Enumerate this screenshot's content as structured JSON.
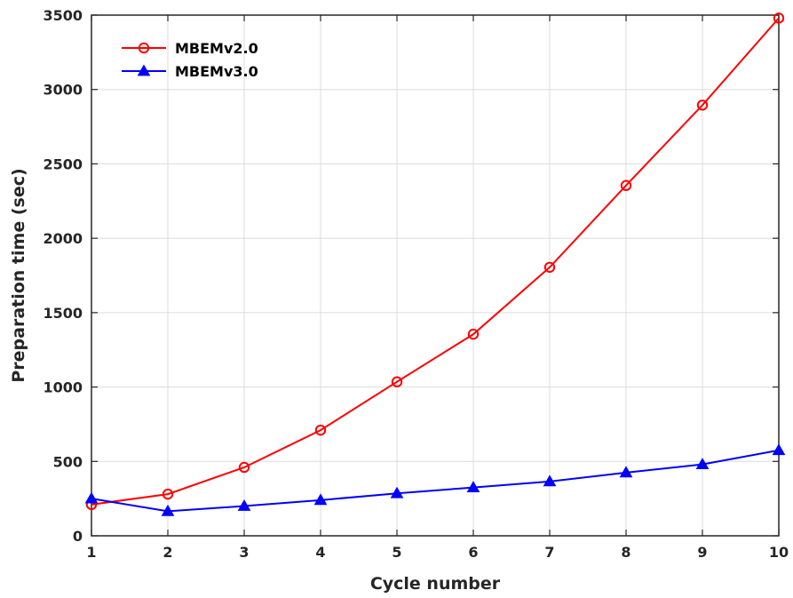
{
  "chart_data": {
    "type": "line",
    "x": [
      1,
      2,
      3,
      4,
      5,
      6,
      7,
      8,
      9,
      10
    ],
    "series": [
      {
        "name": "MBEMv2.0",
        "values": [
          210,
          280,
          460,
          710,
          1035,
          1355,
          1805,
          2355,
          2895,
          3480
        ],
        "color": "#ff0000",
        "marker": "circle"
      },
      {
        "name": "MBEMv3.0",
        "values": [
          250,
          165,
          200,
          240,
          285,
          325,
          365,
          425,
          480,
          575
        ],
        "color": "#0000ff",
        "marker": "triangle"
      }
    ],
    "xlabel": "Cycle number",
    "ylabel": "Preparation time (sec)",
    "xlim": [
      1,
      10
    ],
    "ylim": [
      0,
      3500
    ],
    "xticks": [
      1,
      2,
      3,
      4,
      5,
      6,
      7,
      8,
      9,
      10
    ],
    "yticks": [
      0,
      500,
      1000,
      1500,
      2000,
      2500,
      3000,
      3500
    ],
    "grid": true,
    "legend_position": "top-left"
  }
}
